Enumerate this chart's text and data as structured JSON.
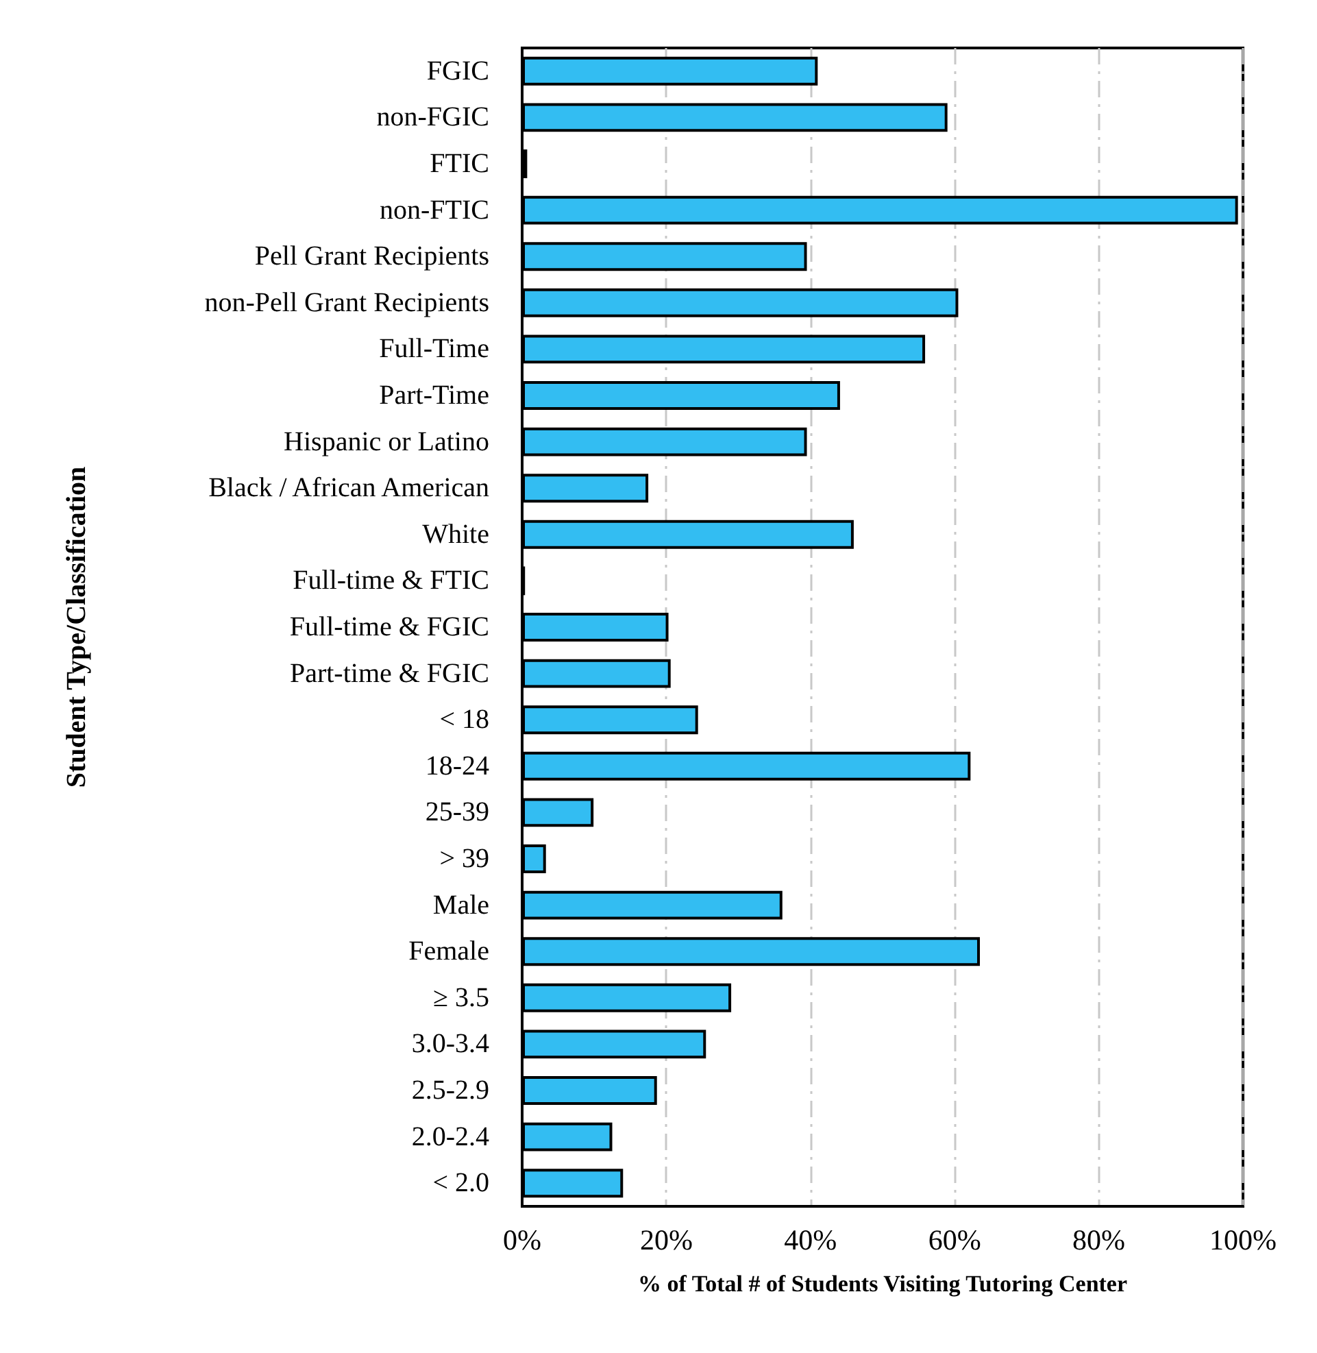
{
  "chart_data": {
    "type": "bar",
    "orientation": "horizontal",
    "xlabel": "% of Total # of Students Visiting Tutoring Center",
    "ylabel": "Student Type/Classification",
    "categories": [
      "FGIC",
      "non-FGIC",
      "FTIC",
      "non-FTIC",
      "Pell Grant Recipients",
      "non-Pell Grant Recipients",
      "Full-Time",
      "Part-Time",
      "Hispanic or Latino",
      "Black / African American",
      "White",
      "Full-time & FTIC",
      "Full-time & FGIC",
      "Part-time & FGIC",
      "< 18",
      "18-24",
      "25-39",
      "> 39",
      "Male",
      "Female",
      "≥ 3.5",
      "3.0-3.4",
      "2.5-2.9",
      "2.0-2.4",
      "< 2.0"
    ],
    "values": [
      41.0,
      59.0,
      0.7,
      99.3,
      39.5,
      60.5,
      55.9,
      44.1,
      39.5,
      17.5,
      46.0,
      0.4,
      20.3,
      20.6,
      24.4,
      62.2,
      9.9,
      3.3,
      36.1,
      63.5,
      29.0,
      25.5,
      18.7,
      12.5,
      14.0
    ],
    "color": "#33bdf2",
    "xlim": [
      0,
      100
    ],
    "xticks": [
      {
        "value": 0,
        "label": "0%"
      },
      {
        "value": 20,
        "label": "20%"
      },
      {
        "value": 40,
        "label": "40%"
      },
      {
        "value": 60,
        "label": "60%"
      },
      {
        "value": 80,
        "label": "80%"
      },
      {
        "value": 100,
        "label": "100%"
      }
    ],
    "grid": "x"
  }
}
